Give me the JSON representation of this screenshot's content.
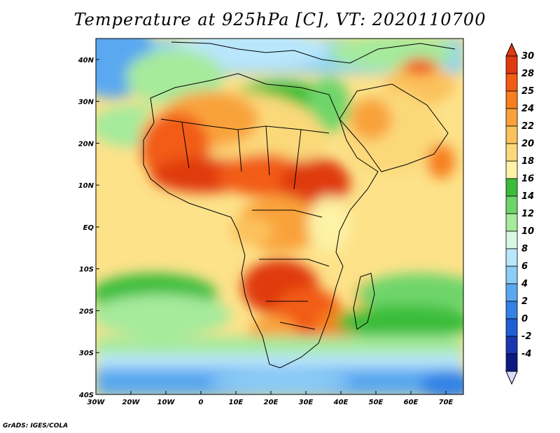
{
  "title": "Temperature at 925hPa [C], VT: 2020110700",
  "footer": "GrADS: IGES/COLA",
  "map": {
    "region": "Africa",
    "lon_range": [
      -30,
      75
    ],
    "lat_range": [
      -40,
      45
    ],
    "lon_ticks": [
      "30W",
      "20W",
      "10W",
      "0",
      "10E",
      "20E",
      "30E",
      "40E",
      "50E",
      "60E",
      "70E"
    ],
    "lat_ticks": [
      "40N",
      "30N",
      "20N",
      "10N",
      "EQ",
      "10S",
      "20S",
      "30S",
      "40S"
    ]
  },
  "colorbar": {
    "labels": [
      "30",
      "28",
      "25",
      "24",
      "22",
      "20",
      "18",
      "16",
      "14",
      "12",
      "10",
      "8",
      "6",
      "4",
      "2",
      "0",
      "-2",
      "-4"
    ],
    "colors": [
      "#e03a10",
      "#f25c14",
      "#f77f1c",
      "#f9a23a",
      "#fbc15c",
      "#fbd97a",
      "#fdf2a6",
      "#3bbd3b",
      "#6ed56a",
      "#a6ea9c",
      "#d8f8e2",
      "#b9e6fb",
      "#8ccdf7",
      "#5aa8f0",
      "#3382e6",
      "#1f5fd6",
      "#1937b0",
      "#0d1a82"
    ]
  }
}
